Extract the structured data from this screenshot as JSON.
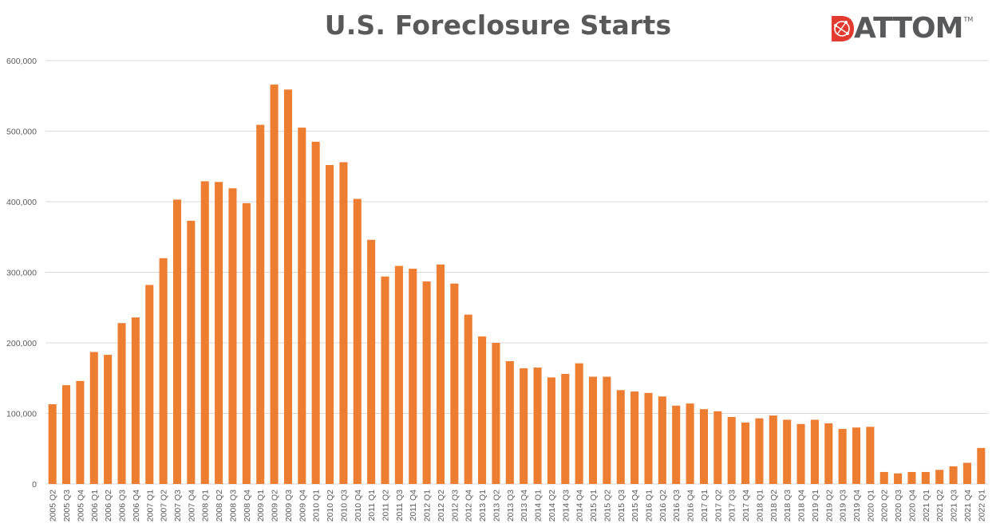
{
  "colors": {
    "bar": "#ED7D31",
    "grid": "#D9D9D9",
    "text": "#595959",
    "logo_red": "#E23A2E",
    "logo_gray": "#58595B"
  },
  "logo": {
    "text": "ATTOM",
    "tm": "TM",
    "icon": "globe-icon"
  },
  "chart_data": {
    "type": "bar",
    "title": "U.S. Foreclosure Starts",
    "xlabel": "",
    "ylabel": "",
    "ylim": [
      0,
      600000
    ],
    "yticks": [
      "0",
      "100,000",
      "200,000",
      "300,000",
      "400,000",
      "500,000",
      "600,000"
    ],
    "grid": true,
    "legend": "none",
    "categories": [
      "2005 Q2",
      "2005 Q3",
      "2005 Q4",
      "2006 Q1",
      "2006 Q2",
      "2006 Q3",
      "2006 Q4",
      "2007 Q1",
      "2007 Q2",
      "2007 Q3",
      "2007 Q4",
      "2008 Q1",
      "2008 Q2",
      "2008 Q3",
      "2008 Q4",
      "2009 Q1",
      "2009 Q2",
      "2009 Q3",
      "2009 Q4",
      "2010 Q1",
      "2010 Q2",
      "2010 Q3",
      "2010 Q4",
      "2011 Q1",
      "2011 Q2",
      "2011 Q3",
      "2011 Q4",
      "2012 Q1",
      "2012 Q2",
      "2012 Q3",
      "2012 Q4",
      "2013 Q1",
      "2013 Q2",
      "2013 Q3",
      "2013 Q4",
      "2014 Q1",
      "2014 Q2",
      "2014 Q3",
      "2014 Q4",
      "2015 Q1",
      "2015 Q2",
      "2015 Q3",
      "2015 Q4",
      "2016 Q1",
      "2016 Q2",
      "2016 Q3",
      "2016 Q4",
      "2017 Q1",
      "2017 Q2",
      "2017 Q3",
      "2017 Q4",
      "2018 Q1",
      "2018 Q2",
      "2018 Q3",
      "2018 Q4",
      "2019 Q1",
      "2019 Q2",
      "2019 Q3",
      "2019 Q4",
      "2020 Q1",
      "2020 Q2",
      "2020 Q3",
      "2020 Q4",
      "2021 Q1",
      "2021 Q2",
      "2021 Q3",
      "2021 Q4",
      "2022 Q1"
    ],
    "values": [
      113000,
      140000,
      146000,
      187000,
      183000,
      228000,
      236000,
      282000,
      320000,
      403000,
      373000,
      429000,
      428000,
      419000,
      398000,
      509000,
      566000,
      559000,
      505000,
      485000,
      452000,
      456000,
      404000,
      346000,
      294000,
      309000,
      305000,
      287000,
      311000,
      284000,
      240000,
      209000,
      200000,
      174000,
      164000,
      165000,
      151000,
      156000,
      171000,
      152000,
      152000,
      133000,
      131000,
      129000,
      124000,
      111000,
      114000,
      106000,
      103000,
      95000,
      87000,
      93000,
      97000,
      91000,
      85000,
      91000,
      86000,
      78000,
      80000,
      81000,
      17000,
      15000,
      17000,
      17000,
      20000,
      25000,
      30000,
      51000
    ]
  }
}
